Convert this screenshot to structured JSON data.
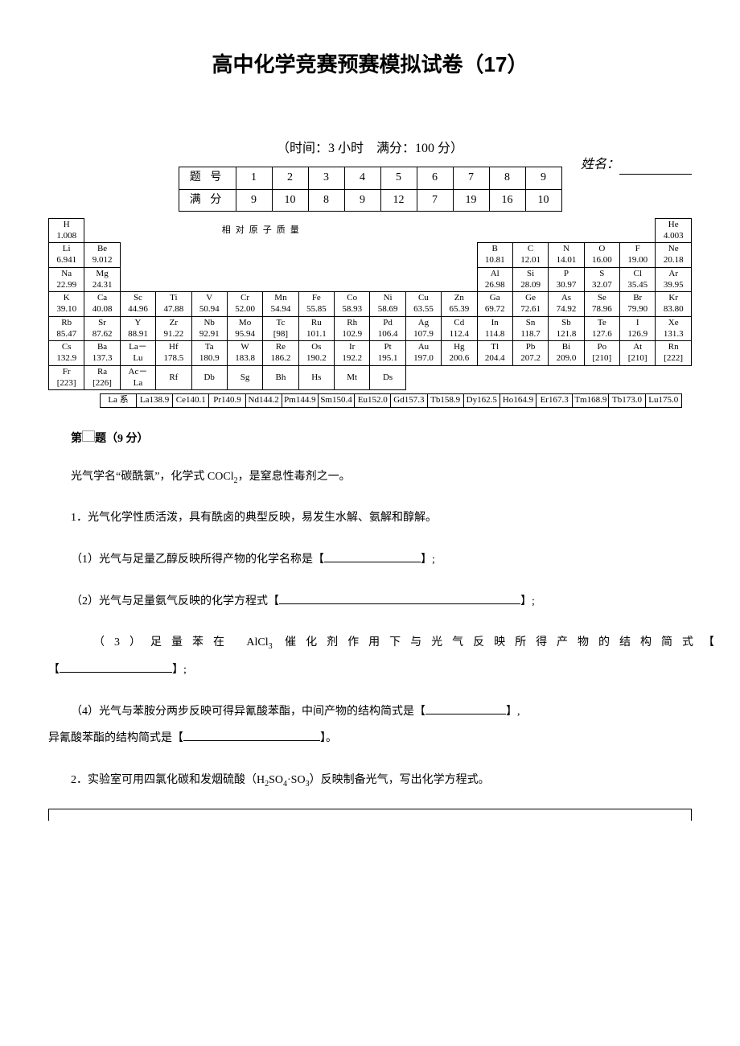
{
  "title": "高中化学竞赛预赛模拟试卷（17）",
  "timing": "（时间：3 小时　满分：100 分）",
  "name_label": "姓名：",
  "score": {
    "row_label": "题 号",
    "point_label": "满 分",
    "cols": [
      "1",
      "2",
      "3",
      "4",
      "5",
      "6",
      "7",
      "8",
      "9"
    ],
    "points": [
      "9",
      "10",
      "8",
      "9",
      "12",
      "7",
      "19",
      "16",
      "10"
    ]
  },
  "relmass_label": "相对原子质量",
  "pt": {
    "r1": [
      {
        "s": "H",
        "m": "1.008"
      },
      {
        "s": "He",
        "m": "4.003"
      }
    ],
    "r2": [
      {
        "s": "Li",
        "m": "6.941"
      },
      {
        "s": "Be",
        "m": "9.012"
      },
      {
        "s": "B",
        "m": "10.81"
      },
      {
        "s": "C",
        "m": "12.01"
      },
      {
        "s": "N",
        "m": "14.01"
      },
      {
        "s": "O",
        "m": "16.00"
      },
      {
        "s": "F",
        "m": "19.00"
      },
      {
        "s": "Ne",
        "m": "20.18"
      }
    ],
    "r3": [
      {
        "s": "Na",
        "m": "22.99"
      },
      {
        "s": "Mg",
        "m": "24.31"
      },
      {
        "s": "Al",
        "m": "26.98"
      },
      {
        "s": "Si",
        "m": "28.09"
      },
      {
        "s": "P",
        "m": "30.97"
      },
      {
        "s": "S",
        "m": "32.07"
      },
      {
        "s": "Cl",
        "m": "35.45"
      },
      {
        "s": "Ar",
        "m": "39.95"
      }
    ],
    "r4": [
      {
        "s": "K",
        "m": "39.10"
      },
      {
        "s": "Ca",
        "m": "40.08"
      },
      {
        "s": "Sc",
        "m": "44.96"
      },
      {
        "s": "Ti",
        "m": "47.88"
      },
      {
        "s": "V",
        "m": "50.94"
      },
      {
        "s": "Cr",
        "m": "52.00"
      },
      {
        "s": "Mn",
        "m": "54.94"
      },
      {
        "s": "Fe",
        "m": "55.85"
      },
      {
        "s": "Co",
        "m": "58.93"
      },
      {
        "s": "Ni",
        "m": "58.69"
      },
      {
        "s": "Cu",
        "m": "63.55"
      },
      {
        "s": "Zn",
        "m": "65.39"
      },
      {
        "s": "Ga",
        "m": "69.72"
      },
      {
        "s": "Ge",
        "m": "72.61"
      },
      {
        "s": "As",
        "m": "74.92"
      },
      {
        "s": "Se",
        "m": "78.96"
      },
      {
        "s": "Br",
        "m": "79.90"
      },
      {
        "s": "Kr",
        "m": "83.80"
      }
    ],
    "r5": [
      {
        "s": "Rb",
        "m": "85.47"
      },
      {
        "s": "Sr",
        "m": "87.62"
      },
      {
        "s": "Y",
        "m": "88.91"
      },
      {
        "s": "Zr",
        "m": "91.22"
      },
      {
        "s": "Nb",
        "m": "92.91"
      },
      {
        "s": "Mo",
        "m": "95.94"
      },
      {
        "s": "Tc",
        "m": "[98]"
      },
      {
        "s": "Ru",
        "m": "101.1"
      },
      {
        "s": "Rh",
        "m": "102.9"
      },
      {
        "s": "Pd",
        "m": "106.4"
      },
      {
        "s": "Ag",
        "m": "107.9"
      },
      {
        "s": "Cd",
        "m": "112.4"
      },
      {
        "s": "In",
        "m": "114.8"
      },
      {
        "s": "Sn",
        "m": "118.7"
      },
      {
        "s": "Sb",
        "m": "121.8"
      },
      {
        "s": "Te",
        "m": "127.6"
      },
      {
        "s": "I",
        "m": "126.9"
      },
      {
        "s": "Xe",
        "m": "131.3"
      }
    ],
    "r6": [
      {
        "s": "Cs",
        "m": "132.9"
      },
      {
        "s": "Ba",
        "m": "137.3"
      },
      {
        "s": "La－",
        "m": "Lu"
      },
      {
        "s": "Hf",
        "m": "178.5"
      },
      {
        "s": "Ta",
        "m": "180.9"
      },
      {
        "s": "W",
        "m": "183.8"
      },
      {
        "s": "Re",
        "m": "186.2"
      },
      {
        "s": "Os",
        "m": "190.2"
      },
      {
        "s": "Ir",
        "m": "192.2"
      },
      {
        "s": "Pt",
        "m": "195.1"
      },
      {
        "s": "Au",
        "m": "197.0"
      },
      {
        "s": "Hg",
        "m": "200.6"
      },
      {
        "s": "Tl",
        "m": "204.4"
      },
      {
        "s": "Pb",
        "m": "207.2"
      },
      {
        "s": "Bi",
        "m": "209.0"
      },
      {
        "s": "Po",
        "m": "[210]"
      },
      {
        "s": "At",
        "m": "[210]"
      },
      {
        "s": "Rn",
        "m": "[222]"
      }
    ],
    "r7": [
      {
        "s": "Fr",
        "m": "[223]"
      },
      {
        "s": "Ra",
        "m": "[226]"
      },
      {
        "s": "Ac－",
        "m": "La"
      },
      {
        "s": "Rf",
        "m": ""
      },
      {
        "s": "Db",
        "m": ""
      },
      {
        "s": "Sg",
        "m": ""
      },
      {
        "s": "Bh",
        "m": ""
      },
      {
        "s": "Hs",
        "m": ""
      },
      {
        "s": "Mt",
        "m": ""
      },
      {
        "s": "Ds",
        "m": ""
      }
    ]
  },
  "la": {
    "label": "La 系",
    "cells": [
      {
        "s": "La",
        "m": "138.9"
      },
      {
        "s": "Ce",
        "m": "140.1"
      },
      {
        "s": "Pr",
        "m": "140.9"
      },
      {
        "s": "Nd",
        "m": "144.2"
      },
      {
        "s": "Pm",
        "m": "144.9"
      },
      {
        "s": "Sm",
        "m": "150.4"
      },
      {
        "s": "Eu",
        "m": "152.0"
      },
      {
        "s": "Gd",
        "m": "157.3"
      },
      {
        "s": "Tb",
        "m": "158.9"
      },
      {
        "s": "Dy",
        "m": "162.5"
      },
      {
        "s": "Ho",
        "m": "164.9"
      },
      {
        "s": "Er",
        "m": "167.3"
      },
      {
        "s": "Tm",
        "m": "168.9"
      },
      {
        "s": "Tb",
        "m": "173.0"
      },
      {
        "s": "Lu",
        "m": "175.0"
      }
    ]
  },
  "q1": {
    "head_a": "第",
    "head_b": "题（9 分）",
    "intro_a": "光气学名“碳酰氯”，化学式 COCl",
    "intro_b": "，是窒息性毒剂之一。",
    "p1": "1．光气化学性质活泼，具有酰卤的典型反映，易发生水解、氨解和醇解。",
    "s1_a": "（1）光气与足量乙醇反映所得产物的化学名称是【",
    "s1_b": "】;",
    "s2_a": "（2）光气与足量氨气反映的化学方程式【",
    "s2_b": "】;",
    "s3_a": "（3）足量苯在 AlCl",
    "s3_b": " 催化剂作用下与光气反映所得产物的结构简式【",
    "s3_c": "】;",
    "s4_a": "（4）光气与苯胺分两步反映可得异氰酸苯酯，中间产物的结构简式是【",
    "s4_b": "】,",
    "s4_c": "异氰酸苯酯的结构简式是【",
    "s4_d": "】。",
    "p2_a": "2．实验室可用四氯化碳和发烟硫酸（H",
    "p2_b": "SO",
    "p2_c": "·SO",
    "p2_d": "）反映制备光气，写出化学方程式。"
  }
}
